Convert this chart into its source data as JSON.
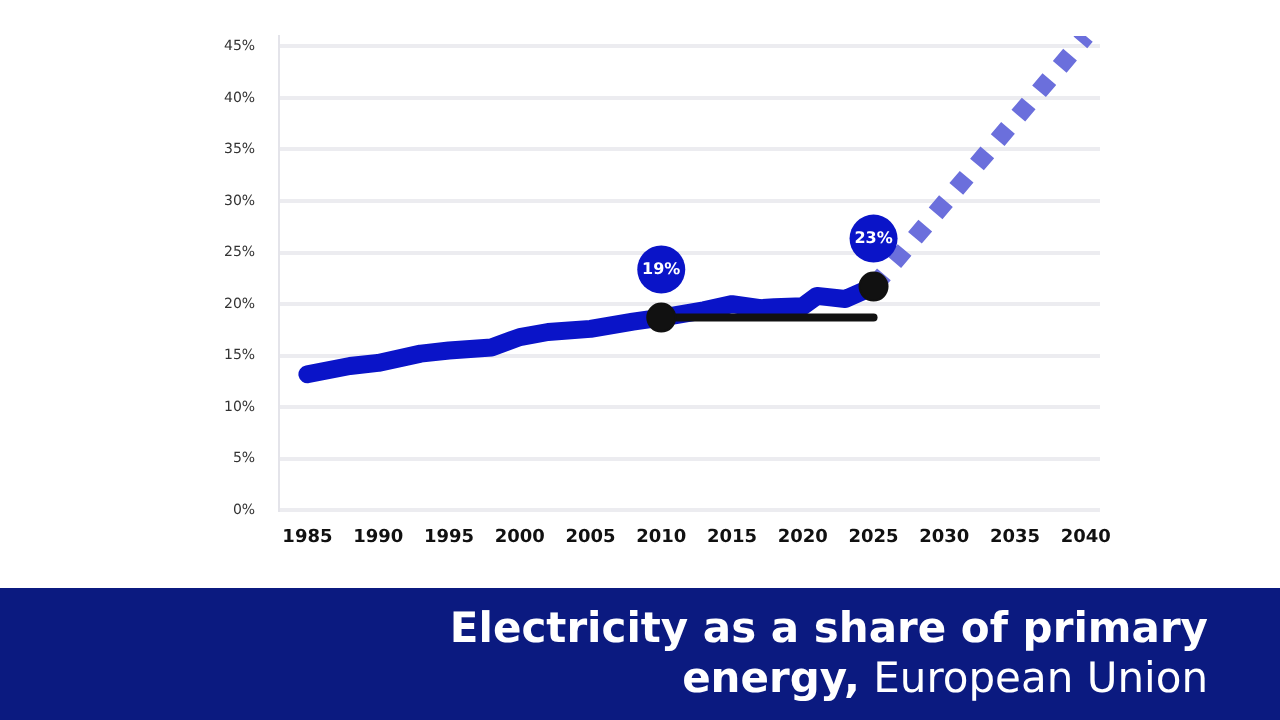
{
  "chart_data": {
    "type": "line",
    "title": "Electricity as a share of primary energy,",
    "subtitle": "European Union",
    "xlim": [
      1983,
      2041
    ],
    "xticks": [
      1985,
      1990,
      1995,
      2000,
      2005,
      2010,
      2015,
      2020,
      2025,
      2030,
      2035,
      2040
    ],
    "ylim": [
      0,
      46
    ],
    "yticks": [
      {
        "value": 0,
        "label": "0%"
      },
      {
        "value": 5,
        "label": "5%"
      },
      {
        "value": 10,
        "label": "10%"
      },
      {
        "value": 15,
        "label": "15%"
      },
      {
        "value": 20,
        "label": "20%"
      },
      {
        "value": 25,
        "label": "25%"
      },
      {
        "value": 30,
        "label": "30%"
      },
      {
        "value": 35,
        "label": "35%"
      },
      {
        "value": 40,
        "label": "40%"
      },
      {
        "value": 45,
        "label": "45%"
      }
    ],
    "grid": "y",
    "series": [
      {
        "color": "#0a14c8",
        "marker": "none",
        "line_style": "solid",
        "x": [
          1985,
          1988,
          1990,
          1993,
          1995,
          1998,
          2000,
          2002,
          2005,
          2008,
          2010,
          2013,
          2015,
          2017,
          2018,
          2020,
          2021,
          2023,
          2025
        ],
        "values": [
          13.2,
          14.0,
          14.3,
          15.2,
          15.5,
          15.8,
          16.8,
          17.3,
          17.6,
          18.3,
          18.7,
          19.4,
          20.0,
          19.6,
          19.7,
          19.8,
          20.8,
          20.5,
          21.7
        ]
      },
      {
        "color": "#6b6fdc",
        "marker": "none",
        "line_style": "dotted",
        "x": [
          2025,
          2040
        ],
        "values": [
          21.7,
          46
        ]
      },
      {
        "color": "#111111",
        "marker": "none",
        "line_style": "solid",
        "x": [
          2010,
          2025
        ],
        "values": [
          18.7,
          18.7
        ]
      },
      {
        "type": "scatter",
        "color": "#111111",
        "marker": "circle",
        "x": [
          2010,
          2025
        ],
        "values": [
          18.7,
          21.7
        ]
      }
    ],
    "annotations": [
      {
        "text": "19%",
        "x": 2010,
        "y": 18.7
      },
      {
        "text": "23%",
        "x": 2025,
        "y": 21.7
      }
    ]
  }
}
